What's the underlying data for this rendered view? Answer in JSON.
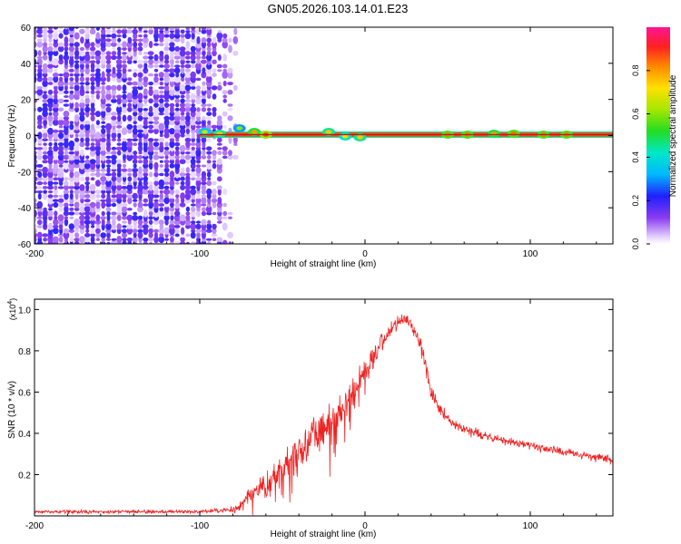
{
  "figure_title": "GN05.2026.103.14.01.E23",
  "colors": {
    "snr_line": "#ee2222",
    "ridge_line": "#cc1111",
    "axis": "#000000",
    "gridline": "#888888"
  },
  "chart_data": [
    {
      "type": "heatmap",
      "name": "spectrogram",
      "xlabel": "Height of straight line (km)",
      "ylabel": "Frequency (Hz)",
      "xlim": [
        -200,
        150
      ],
      "ylim": [
        -60,
        60
      ],
      "x_ticks": [
        -200,
        -100,
        0,
        100
      ],
      "x_tick_labels": [
        "-200",
        "-100",
        "0",
        "100"
      ],
      "y_ticks": [
        -60,
        -40,
        -20,
        0,
        20,
        40,
        60
      ],
      "y_tick_labels": [
        "-60",
        "-40",
        "-20",
        "0",
        "20",
        "40",
        "60"
      ],
      "colorbar": {
        "label": "Normalized spectral amplitude",
        "range": [
          0,
          1
        ],
        "ticks": [
          0,
          0.2,
          0.4,
          0.6,
          0.8
        ],
        "tick_labels": [
          "0.0",
          "0.2",
          "0.4",
          "0.6",
          "0.8"
        ]
      },
      "noise_region_x": [
        -200,
        -78
      ],
      "ridge": {
        "frequency_hz": 0.5,
        "x_range": [
          -100,
          150
        ],
        "blobs": [
          {
            "x": -97,
            "y": 2,
            "amp": 0.35
          },
          {
            "x": -88,
            "y": 1,
            "amp": 0.45
          },
          {
            "x": -76,
            "y": 4,
            "amp": 0.3
          },
          {
            "x": -67,
            "y": 2,
            "amp": 0.5
          },
          {
            "x": -60,
            "y": 0.5,
            "amp": 0.6
          },
          {
            "x": -22,
            "y": 2,
            "amp": 0.45
          },
          {
            "x": -12,
            "y": -0.5,
            "amp": 0.4
          },
          {
            "x": -3,
            "y": -1,
            "amp": 0.45
          },
          {
            "x": 50,
            "y": 0.5,
            "amp": 0.55
          },
          {
            "x": 62,
            "y": 0.5,
            "amp": 0.55
          },
          {
            "x": 78,
            "y": 1,
            "amp": 0.5
          },
          {
            "x": 90,
            "y": 1,
            "amp": 0.55
          },
          {
            "x": 108,
            "y": 0.5,
            "amp": 0.55
          },
          {
            "x": 122,
            "y": 0.5,
            "amp": 0.55
          }
        ]
      }
    },
    {
      "type": "line",
      "name": "snr",
      "xlabel": "Height of straight line (km)",
      "ylabel": "SNR (10 * v/v)",
      "y_scale_label": "(x10",
      "y_scale_exponent": "4",
      "xlim": [
        -200,
        150
      ],
      "ylim": [
        0,
        1.05
      ],
      "x_ticks": [
        -200,
        -100,
        0,
        100
      ],
      "x_tick_labels": [
        "-200",
        "-100",
        "0",
        "100"
      ],
      "y_ticks": [
        0.2,
        0.4,
        0.6,
        0.8,
        1.0
      ],
      "y_tick_labels": [
        "0.2",
        "0.4",
        "0.6",
        "0.8",
        "1.0"
      ],
      "envelope": {
        "x": [
          -200,
          -150,
          -100,
          -80,
          -75,
          -70,
          -60,
          -50,
          -40,
          -30,
          -20,
          -10,
          0,
          10,
          15,
          20,
          25,
          30,
          35,
          40,
          45,
          50,
          60,
          70,
          80,
          100,
          120,
          150
        ],
        "mean": [
          0.02,
          0.02,
          0.02,
          0.03,
          0.05,
          0.1,
          0.15,
          0.22,
          0.3,
          0.38,
          0.46,
          0.55,
          0.7,
          0.84,
          0.9,
          0.94,
          0.95,
          0.9,
          0.8,
          0.6,
          0.52,
          0.47,
          0.42,
          0.39,
          0.37,
          0.34,
          0.31,
          0.27
        ],
        "noise": [
          0.012,
          0.012,
          0.012,
          0.02,
          0.04,
          0.07,
          0.1,
          0.12,
          0.13,
          0.14,
          0.14,
          0.12,
          0.1,
          0.07,
          0.06,
          0.06,
          0.06,
          0.06,
          0.06,
          0.05,
          0.045,
          0.04,
          0.035,
          0.035,
          0.03,
          0.03,
          0.03,
          0.03
        ]
      }
    }
  ]
}
